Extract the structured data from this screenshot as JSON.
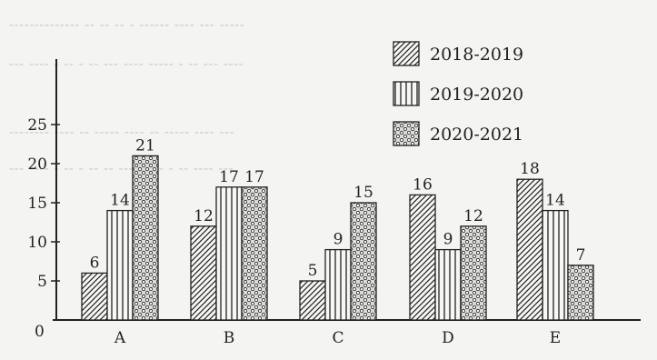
{
  "chart_data": {
    "type": "bar",
    "categories": [
      "A",
      "B",
      "C",
      "D",
      "E"
    ],
    "series": [
      {
        "name": "2018-2019",
        "values": [
          6,
          12,
          5,
          16,
          18
        ],
        "pattern": "diagonal"
      },
      {
        "name": "2019-2020",
        "values": [
          14,
          17,
          9,
          9,
          14
        ],
        "pattern": "vertical"
      },
      {
        "name": "2020-2021",
        "values": [
          21,
          17,
          15,
          12,
          7
        ],
        "pattern": "dots"
      }
    ],
    "title": "",
    "xlabel": "",
    "ylabel": "",
    "ylim": [
      0,
      25
    ],
    "yticks": [
      0,
      5,
      10,
      15,
      20,
      25
    ],
    "grid": false,
    "legend": "top-right",
    "data_labels": true,
    "colors": {
      "background": "#f4f4f2",
      "ink": "#222222",
      "bar_fill": "#f7f7f5"
    }
  }
}
